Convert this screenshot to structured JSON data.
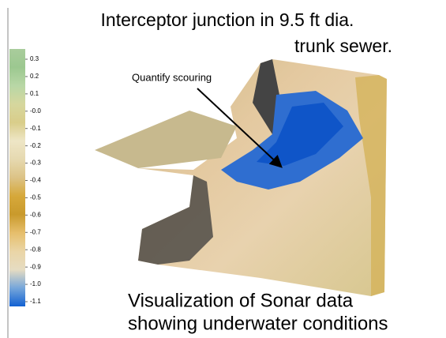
{
  "title": [
    "Interceptor junction in 9.5 ft dia.",
    "trunk sewer."
  ],
  "annotation": "Quantify scouring",
  "caption": [
    "Visualization of Sonar data",
    "showing underwater conditions"
  ],
  "colorbar": {
    "ticks": [
      0.3,
      0.2,
      0.1,
      {
        "value": 0,
        "label": "-0.0"
      },
      -0.1,
      -0.2,
      -0.3,
      -0.4,
      -0.5,
      -0.6,
      -0.7,
      -0.8,
      -0.9,
      {
        "value": -1,
        "label": "-1.0"
      },
      -1.1
    ],
    "colors": [
      "#a9cc9c",
      "#9cc890",
      "#b8d7a6",
      "#d6d79e",
      "#d9cd8a",
      "#eee6c6",
      "#e6d9b0",
      "#dcc386",
      "#d6a83a",
      "#c99a2c",
      "#e6be6c",
      "#ead5a6",
      "#e6dcc2",
      "#76a6da",
      "#1260d2"
    ]
  }
}
